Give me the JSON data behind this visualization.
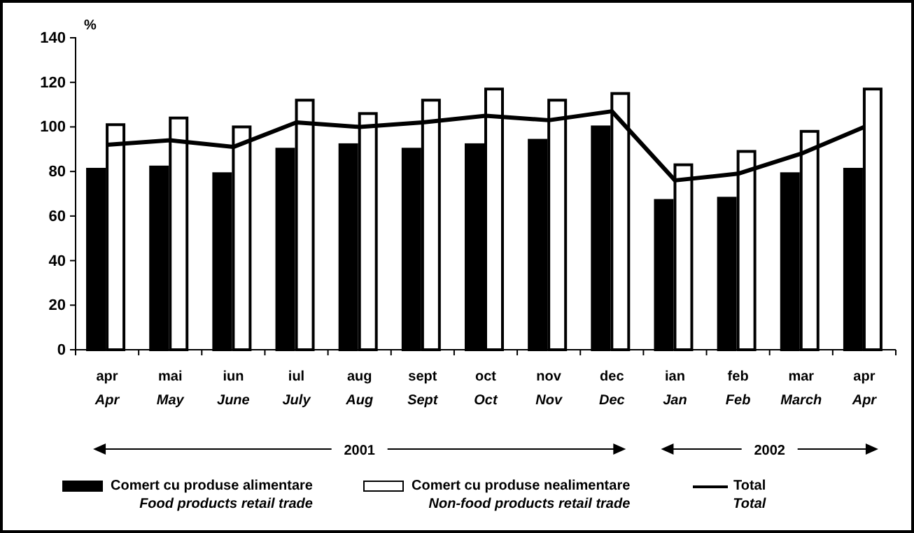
{
  "chart_data": {
    "type": "bar",
    "ylabel": "%",
    "categories": [
      "apr\nApr",
      "mai\nMay",
      "iun\nJune",
      "iul\nJuly",
      "aug\nAug",
      "sept\nSept",
      "oct\nOct",
      "nov\nNov",
      "dec\nDec",
      "ian\nJan",
      "feb\nFeb",
      "mar\nMarch",
      "apr\nApr"
    ],
    "series": [
      {
        "name": "Comert cu produse alimentare\nFood products retail trade",
        "color": "#000000",
        "values": [
          81,
          82,
          79,
          90,
          92,
          90,
          92,
          94,
          100,
          67,
          68,
          79,
          81
        ]
      },
      {
        "name": "Comert cu produse nealimentare\nNon-food  products retail trade",
        "color": "#ffffff",
        "values": [
          101,
          104,
          100,
          112,
          106,
          112,
          117,
          112,
          115,
          83,
          89,
          98,
          117
        ]
      },
      {
        "name": "Total\nTotal",
        "type": "line",
        "color": "#000000",
        "values": [
          92,
          94,
          91,
          102,
          100,
          102,
          105,
          103,
          107,
          76,
          79,
          88,
          100
        ]
      }
    ],
    "ylim": [
      0,
      140
    ],
    "yticks": [
      0,
      20,
      40,
      60,
      80,
      100,
      120,
      140
    ],
    "annotations": [
      "2001",
      "2002"
    ],
    "legend": "bottom"
  }
}
